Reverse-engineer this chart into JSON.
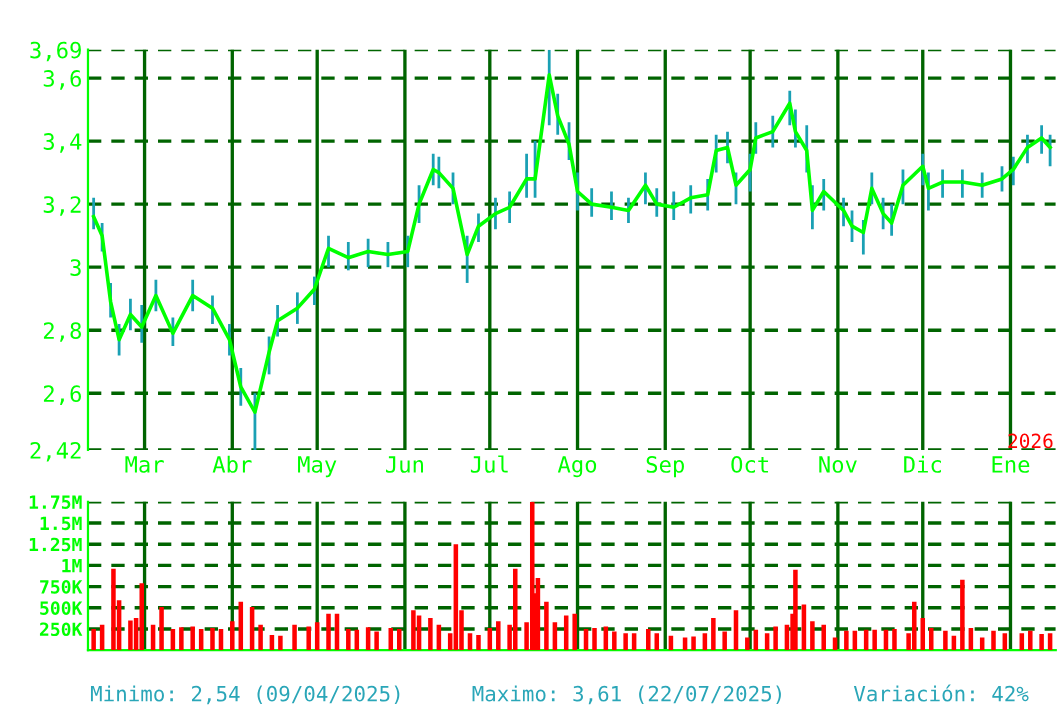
{
  "chart_data": [
    {
      "type": "line",
      "x": [
        "2025-02-11",
        "2025-02-14",
        "2025-02-17",
        "2025-02-20",
        "2025-02-24",
        "2025-02-28",
        "2025-03-05",
        "2025-03-11",
        "2025-03-18",
        "2025-03-25",
        "2025-03-31",
        "2025-04-04",
        "2025-04-09",
        "2025-04-14",
        "2025-04-17",
        "2025-04-24",
        "2025-04-30",
        "2025-05-05",
        "2025-05-12",
        "2025-05-19",
        "2025-05-26",
        "2025-06-02",
        "2025-06-06",
        "2025-06-11",
        "2025-06-13",
        "2025-06-18",
        "2025-06-23",
        "2025-06-27",
        "2025-07-03",
        "2025-07-08",
        "2025-07-14",
        "2025-07-17",
        "2025-07-22",
        "2025-07-25",
        "2025-07-29",
        "2025-08-01",
        "2025-08-06",
        "2025-08-13",
        "2025-08-19",
        "2025-08-25",
        "2025-08-29",
        "2025-09-04",
        "2025-09-10",
        "2025-09-16",
        "2025-09-19",
        "2025-09-23",
        "2025-09-26",
        "2025-10-01",
        "2025-10-03",
        "2025-10-09",
        "2025-10-15",
        "2025-10-17",
        "2025-10-21",
        "2025-10-23",
        "2025-10-27",
        "2025-11-03",
        "2025-11-06",
        "2025-11-10",
        "2025-11-13",
        "2025-11-17",
        "2025-11-20",
        "2025-11-24",
        "2025-12-01",
        "2025-12-03",
        "2025-12-08",
        "2025-12-15",
        "2025-12-22",
        "2025-12-29",
        "2026-01-02",
        "2026-01-07",
        "2026-01-12",
        "2026-01-15"
      ],
      "series": [
        {
          "color": "#00ff00",
          "values": [
            3.16,
            3.1,
            2.89,
            2.77,
            2.85,
            2.81,
            2.91,
            2.79,
            2.91,
            2.87,
            2.77,
            2.62,
            2.54,
            2.73,
            2.83,
            2.87,
            2.93,
            3.06,
            3.03,
            3.05,
            3.04,
            3.05,
            3.2,
            3.31,
            3.3,
            3.25,
            3.04,
            3.13,
            3.17,
            3.19,
            3.28,
            3.28,
            3.61,
            3.48,
            3.39,
            3.24,
            3.2,
            3.19,
            3.18,
            3.26,
            3.2,
            3.19,
            3.22,
            3.23,
            3.37,
            3.38,
            3.26,
            3.31,
            3.41,
            3.43,
            3.52,
            3.43,
            3.37,
            3.18,
            3.24,
            3.18,
            3.13,
            3.11,
            3.25,
            3.17,
            3.14,
            3.26,
            3.32,
            3.25,
            3.27,
            3.27,
            3.26,
            3.28,
            3.31,
            3.38,
            3.41,
            3.38
          ],
          "errors": [
            [
              3.12,
              3.22
            ],
            [
              3.05,
              3.14
            ],
            [
              2.84,
              2.95
            ],
            [
              2.72,
              2.82
            ],
            [
              2.8,
              2.9
            ],
            [
              2.76,
              2.88
            ],
            [
              2.86,
              2.96
            ],
            [
              2.75,
              2.84
            ],
            [
              2.86,
              2.96
            ],
            [
              2.82,
              2.91
            ],
            [
              2.72,
              2.82
            ],
            [
              2.56,
              2.68
            ],
            [
              2.42,
              2.6
            ],
            [
              2.66,
              2.78
            ],
            [
              2.78,
              2.88
            ],
            [
              2.82,
              2.92
            ],
            [
              2.88,
              2.97
            ],
            [
              3.0,
              3.1
            ],
            [
              2.99,
              3.08
            ],
            [
              3.0,
              3.09
            ],
            [
              3.0,
              3.08
            ],
            [
              3.0,
              3.1
            ],
            [
              3.14,
              3.26
            ],
            [
              3.26,
              3.36
            ],
            [
              3.25,
              3.35
            ],
            [
              3.2,
              3.3
            ],
            [
              2.95,
              3.1
            ],
            [
              3.08,
              3.17
            ],
            [
              3.12,
              3.22
            ],
            [
              3.14,
              3.24
            ],
            [
              3.22,
              3.36
            ],
            [
              3.22,
              3.4
            ],
            [
              3.45,
              3.69
            ],
            [
              3.42,
              3.55
            ],
            [
              3.34,
              3.46
            ],
            [
              3.18,
              3.3
            ],
            [
              3.16,
              3.25
            ],
            [
              3.15,
              3.24
            ],
            [
              3.14,
              3.22
            ],
            [
              3.2,
              3.3
            ],
            [
              3.16,
              3.25
            ],
            [
              3.15,
              3.24
            ],
            [
              3.17,
              3.26
            ],
            [
              3.18,
              3.28
            ],
            [
              3.3,
              3.42
            ],
            [
              3.33,
              3.43
            ],
            [
              3.2,
              3.3
            ],
            [
              3.24,
              3.36
            ],
            [
              3.36,
              3.46
            ],
            [
              3.38,
              3.48
            ],
            [
              3.45,
              3.56
            ],
            [
              3.38,
              3.5
            ],
            [
              3.3,
              3.45
            ],
            [
              3.12,
              3.26
            ],
            [
              3.18,
              3.28
            ],
            [
              3.13,
              3.22
            ],
            [
              3.08,
              3.18
            ],
            [
              3.04,
              3.15
            ],
            [
              3.2,
              3.3
            ],
            [
              3.12,
              3.22
            ],
            [
              3.1,
              3.2
            ],
            [
              3.2,
              3.31
            ],
            [
              3.26,
              3.36
            ],
            [
              3.18,
              3.3
            ],
            [
              3.22,
              3.31
            ],
            [
              3.22,
              3.31
            ],
            [
              3.22,
              3.3
            ],
            [
              3.24,
              3.32
            ],
            [
              3.26,
              3.35
            ],
            [
              3.33,
              3.42
            ],
            [
              3.36,
              3.45
            ],
            [
              3.32,
              3.42
            ]
          ]
        }
      ],
      "xlim": [
        "2025-02-09",
        "2026-01-17"
      ],
      "xticks": [
        {
          "value": "2025-03-01",
          "label": "Mar"
        },
        {
          "value": "2025-04-01",
          "label": "Abr"
        },
        {
          "value": "2025-05-01",
          "label": "May"
        },
        {
          "value": "2025-06-01",
          "label": "Jun"
        },
        {
          "value": "2025-07-01",
          "label": "Jul"
        },
        {
          "value": "2025-08-01",
          "label": "Ago"
        },
        {
          "value": "2025-09-01",
          "label": "Sep"
        },
        {
          "value": "2025-10-01",
          "label": "Oct"
        },
        {
          "value": "2025-11-01",
          "label": "Nov"
        },
        {
          "value": "2025-12-01",
          "label": "Dic"
        },
        {
          "value": "2026-01-01",
          "label": "Ene"
        }
      ],
      "ylim": [
        2.42,
        3.69
      ],
      "yticks": [
        {
          "value": 2.42,
          "label": "2,42"
        },
        {
          "value": 2.6,
          "label": "2,6"
        },
        {
          "value": 2.8,
          "label": "2,8"
        },
        {
          "value": 3,
          "label": "3"
        },
        {
          "value": 3.2,
          "label": "3,2"
        },
        {
          "value": 3.4,
          "label": "3,4"
        },
        {
          "value": 3.6,
          "label": "3,6"
        },
        {
          "value": 3.69,
          "label": "3,69"
        }
      ],
      "grid": true,
      "annotations": [
        "2026"
      ]
    },
    {
      "type": "bar",
      "x": [
        "2025-02-11",
        "2025-02-14",
        "2025-02-18",
        "2025-02-20",
        "2025-02-24",
        "2025-02-26",
        "2025-02-28",
        "2025-03-04",
        "2025-03-07",
        "2025-03-11",
        "2025-03-14",
        "2025-03-18",
        "2025-03-21",
        "2025-03-25",
        "2025-03-28",
        "2025-04-01",
        "2025-04-04",
        "2025-04-08",
        "2025-04-11",
        "2025-04-15",
        "2025-04-18",
        "2025-04-23",
        "2025-04-28",
        "2025-05-01",
        "2025-05-05",
        "2025-05-08",
        "2025-05-12",
        "2025-05-15",
        "2025-05-19",
        "2025-05-22",
        "2025-05-27",
        "2025-05-30",
        "2025-06-04",
        "2025-06-06",
        "2025-06-10",
        "2025-06-13",
        "2025-06-17",
        "2025-06-19",
        "2025-06-21",
        "2025-06-24",
        "2025-06-27",
        "2025-07-01",
        "2025-07-04",
        "2025-07-08",
        "2025-07-10",
        "2025-07-14",
        "2025-07-16",
        "2025-07-17",
        "2025-07-18",
        "2025-07-21",
        "2025-07-24",
        "2025-07-28",
        "2025-07-31",
        "2025-08-04",
        "2025-08-07",
        "2025-08-11",
        "2025-08-14",
        "2025-08-18",
        "2025-08-21",
        "2025-08-26",
        "2025-08-29",
        "2025-09-03",
        "2025-09-08",
        "2025-09-11",
        "2025-09-15",
        "2025-09-18",
        "2025-09-22",
        "2025-09-26",
        "2025-09-30",
        "2025-10-03",
        "2025-10-07",
        "2025-10-10",
        "2025-10-14",
        "2025-10-16",
        "2025-10-17",
        "2025-10-20",
        "2025-10-23",
        "2025-10-27",
        "2025-10-31",
        "2025-11-04",
        "2025-11-07",
        "2025-11-11",
        "2025-11-14",
        "2025-11-18",
        "2025-11-21",
        "2025-11-26",
        "2025-11-28",
        "2025-12-01",
        "2025-12-04",
        "2025-12-09",
        "2025-12-12",
        "2025-12-15",
        "2025-12-18",
        "2025-12-22",
        "2025-12-26",
        "2025-12-30",
        "2026-01-05",
        "2026-01-08",
        "2026-01-12",
        "2026-01-15"
      ],
      "values": [
        250000,
        300000,
        960000,
        590000,
        350000,
        380000,
        790000,
        300000,
        510000,
        250000,
        270000,
        280000,
        250000,
        260000,
        250000,
        340000,
        570000,
        510000,
        300000,
        180000,
        170000,
        300000,
        280000,
        330000,
        430000,
        430000,
        250000,
        240000,
        270000,
        220000,
        260000,
        250000,
        470000,
        410000,
        380000,
        300000,
        200000,
        1250000,
        470000,
        200000,
        180000,
        260000,
        340000,
        300000,
        960000,
        330000,
        1750000,
        670000,
        850000,
        570000,
        330000,
        410000,
        430000,
        250000,
        260000,
        280000,
        220000,
        200000,
        200000,
        250000,
        200000,
        170000,
        150000,
        160000,
        200000,
        380000,
        220000,
        470000,
        150000,
        240000,
        200000,
        280000,
        300000,
        430000,
        950000,
        540000,
        340000,
        300000,
        150000,
        230000,
        230000,
        240000,
        240000,
        240000,
        250000,
        200000,
        570000,
        380000,
        260000,
        230000,
        170000,
        830000,
        260000,
        150000,
        230000,
        200000,
        200000,
        230000,
        190000,
        200000
      ],
      "color": "#ff0000",
      "xlim": [
        "2025-02-09",
        "2026-01-17"
      ],
      "xticks": [
        {
          "value": "2025-03-01",
          "label": null
        },
        {
          "value": "2025-04-01",
          "label": null
        },
        {
          "value": "2025-05-01",
          "label": null
        },
        {
          "value": "2025-06-01",
          "label": null
        },
        {
          "value": "2025-07-01",
          "label": null
        },
        {
          "value": "2025-08-01",
          "label": null
        },
        {
          "value": "2025-09-01",
          "label": null
        },
        {
          "value": "2025-10-01",
          "label": null
        },
        {
          "value": "2025-11-01",
          "label": null
        },
        {
          "value": "2025-12-01",
          "label": null
        },
        {
          "value": "2026-01-01",
          "label": null
        }
      ],
      "ylim": [
        0,
        1750000
      ],
      "yticks": [
        {
          "value": 250000,
          "label": "250K"
        },
        {
          "value": 500000,
          "label": "500K"
        },
        {
          "value": 750000,
          "label": "750K"
        },
        {
          "value": 1000000,
          "label": "1M"
        },
        {
          "value": 1250000,
          "label": "1.25M"
        },
        {
          "value": 1500000,
          "label": "1.5M"
        },
        {
          "value": 1750000,
          "label": "1.75M"
        }
      ],
      "grid": true,
      "tick_labels": "y",
      "annotations": [
        "Minimo: 2,54 (09/04/2025)",
        "Maximo: 3,61 (22/07/2025)",
        "Variación: 42%"
      ]
    }
  ]
}
